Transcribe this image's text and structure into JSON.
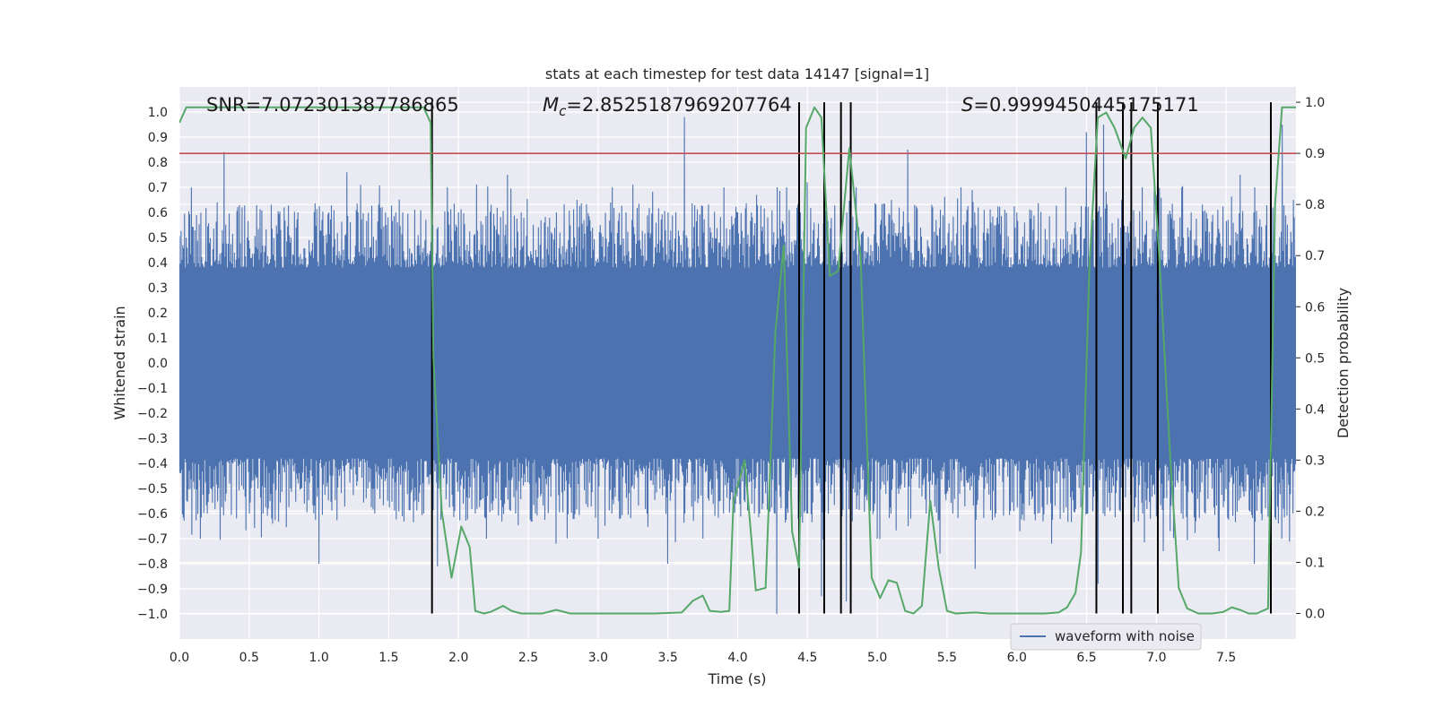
{
  "chart_data": {
    "type": "line",
    "title": "stats at each timestep for test data 14147 [signal=1]",
    "xlabel": "Time (s)",
    "ylabel": "Whitened strain",
    "y2label": "Detection probability",
    "xlim": [
      0,
      8.0
    ],
    "ylim": [
      -1.1,
      1.1
    ],
    "y2lim": [
      -0.05,
      1.03
    ],
    "xticks": [
      0.0,
      0.5,
      1.0,
      1.5,
      2.0,
      2.5,
      3.0,
      3.5,
      4.0,
      4.5,
      5.0,
      5.5,
      6.0,
      6.5,
      7.0,
      7.5
    ],
    "xtick_labels": [
      "0.0",
      "0.5",
      "1.0",
      "1.5",
      "2.0",
      "2.5",
      "3.0",
      "3.5",
      "4.0",
      "4.5",
      "5.0",
      "5.5",
      "6.0",
      "6.5",
      "7.0",
      "7.5"
    ],
    "yticks": [
      1.0,
      0.9,
      0.8,
      0.7,
      0.6,
      0.5,
      0.4,
      0.3,
      0.2,
      0.1,
      0.0,
      -0.1,
      -0.2,
      -0.3,
      -0.4,
      -0.5,
      -0.6,
      -0.7,
      -0.8,
      -0.9,
      -1.0
    ],
    "ytick_labels": [
      "1.0",
      "0.9",
      "0.8",
      "0.7",
      "0.6",
      "0.5",
      "0.4",
      "0.3",
      "0.2",
      "0.1",
      "0.0",
      "−0.1",
      "−0.2",
      "−0.3",
      "−0.4",
      "−0.5",
      "−0.6",
      "−0.7",
      "−0.8",
      "−0.9",
      "−1.0"
    ],
    "y2ticks": [
      1.0,
      0.9,
      0.8,
      0.7,
      0.6,
      0.5,
      0.4,
      0.3,
      0.2,
      0.1,
      0.0
    ],
    "y2tick_labels": [
      "1.0",
      "0.9",
      "0.8",
      "0.7",
      "0.6",
      "0.5",
      "0.4",
      "0.3",
      "0.2",
      "0.1",
      "0.0"
    ],
    "grid": true,
    "annotations": {
      "snr": "SNR=7.072301387786865",
      "mc_symbol": "M",
      "mc_sub": "c",
      "mc_value": "=2.8525187969207764",
      "s_symbol": "S",
      "s_value": "=0.9999450445175171"
    },
    "threshold_y2": 0.9,
    "waveform": {
      "name": "waveform with noise",
      "color": "#4c72b0",
      "envelope_peaks": [
        [
          0.05,
          0.5,
          -0.55
        ],
        [
          0.15,
          0.62,
          -0.7
        ],
        [
          0.27,
          0.64,
          -0.78
        ],
        [
          0.32,
          0.84,
          -0.6
        ],
        [
          0.45,
          0.62,
          -0.7
        ],
        [
          0.6,
          0.65,
          -0.6
        ],
        [
          0.75,
          0.62,
          -0.62
        ],
        [
          0.85,
          0.6,
          -0.67
        ],
        [
          1.0,
          0.65,
          -0.8
        ],
        [
          1.07,
          0.6,
          -0.95
        ],
        [
          1.2,
          0.76,
          -0.6
        ],
        [
          1.28,
          0.6,
          -0.78
        ],
        [
          1.4,
          0.91,
          -0.6
        ],
        [
          1.55,
          0.6,
          -0.68
        ],
        [
          1.6,
          0.6,
          -0.8
        ],
        [
          1.75,
          0.7,
          -0.6
        ],
        [
          1.85,
          0.6,
          -0.81
        ],
        [
          1.92,
          0.7,
          -0.6
        ],
        [
          2.0,
          0.6,
          -0.7
        ],
        [
          2.12,
          0.82,
          -0.6
        ],
        [
          2.2,
          0.6,
          -0.7
        ],
        [
          2.35,
          0.75,
          -0.6
        ],
        [
          2.45,
          0.6,
          -0.78
        ],
        [
          2.55,
          0.7,
          -0.6
        ],
        [
          2.7,
          0.6,
          -0.72
        ],
        [
          2.85,
          0.65,
          -0.6
        ],
        [
          3.0,
          0.6,
          -0.7
        ],
        [
          3.1,
          0.7,
          -0.6
        ],
        [
          3.2,
          0.6,
          -0.72
        ],
        [
          3.35,
          0.7,
          -0.6
        ],
        [
          3.5,
          0.6,
          -0.8
        ],
        [
          3.62,
          0.98,
          -0.6
        ],
        [
          3.75,
          0.65,
          -0.7
        ],
        [
          3.9,
          0.7,
          -0.6
        ],
        [
          4.0,
          0.6,
          -0.75
        ],
        [
          4.12,
          0.7,
          -0.6
        ],
        [
          4.28,
          0.6,
          -1.0
        ],
        [
          4.35,
          0.7,
          -0.6
        ],
        [
          4.45,
          0.6,
          -0.8
        ],
        [
          4.5,
          0.72,
          -0.6
        ],
        [
          4.6,
          0.6,
          -0.93
        ],
        [
          4.65,
          0.72,
          -0.6
        ],
        [
          4.78,
          0.6,
          -0.95
        ],
        [
          4.85,
          0.7,
          -0.6
        ],
        [
          5.0,
          0.6,
          -0.7
        ],
        [
          5.1,
          0.65,
          -0.6
        ],
        [
          5.22,
          0.85,
          -0.65
        ],
        [
          5.35,
          0.65,
          -0.6
        ],
        [
          5.45,
          0.6,
          -0.76
        ],
        [
          5.6,
          0.7,
          -0.6
        ],
        [
          5.7,
          0.6,
          -0.82
        ],
        [
          5.85,
          0.7,
          -0.6
        ],
        [
          6.0,
          0.6,
          -0.76
        ],
        [
          6.15,
          0.7,
          -0.6
        ],
        [
          6.25,
          0.6,
          -0.72
        ],
        [
          6.35,
          0.7,
          -0.6
        ],
        [
          6.5,
          0.92,
          -0.6
        ],
        [
          6.58,
          0.6,
          -0.88
        ],
        [
          6.62,
          0.95,
          -0.6
        ],
        [
          6.75,
          0.65,
          -0.8
        ],
        [
          6.9,
          0.7,
          -0.6
        ],
        [
          7.05,
          0.6,
          -0.75
        ],
        [
          7.18,
          0.7,
          -0.6
        ],
        [
          7.25,
          0.6,
          -0.82
        ],
        [
          7.35,
          0.7,
          -0.6
        ],
        [
          7.45,
          0.6,
          -0.75
        ],
        [
          7.6,
          0.75,
          -0.6
        ],
        [
          7.7,
          0.6,
          -0.8
        ],
        [
          7.75,
          0.72,
          -0.6
        ],
        [
          7.9,
          0.95,
          -0.7
        ],
        [
          7.98,
          0.65,
          -0.6
        ]
      ]
    },
    "detection_probability": {
      "color": "#55a868",
      "points": [
        [
          0.0,
          0.96
        ],
        [
          0.05,
          0.99
        ],
        [
          0.2,
          0.99
        ],
        [
          0.5,
          0.99
        ],
        [
          1.0,
          0.99
        ],
        [
          1.5,
          0.99
        ],
        [
          1.75,
          0.99
        ],
        [
          1.8,
          0.96
        ],
        [
          1.82,
          0.5
        ],
        [
          1.88,
          0.2
        ],
        [
          1.95,
          0.07
        ],
        [
          2.02,
          0.17
        ],
        [
          2.08,
          0.13
        ],
        [
          2.12,
          0.005
        ],
        [
          2.18,
          0.0
        ],
        [
          2.23,
          0.003
        ],
        [
          2.32,
          0.015
        ],
        [
          2.38,
          0.005
        ],
        [
          2.45,
          0.0
        ],
        [
          2.6,
          0.0
        ],
        [
          2.7,
          0.007
        ],
        [
          2.8,
          0.0
        ],
        [
          3.0,
          0.0
        ],
        [
          3.2,
          0.0
        ],
        [
          3.4,
          0.0
        ],
        [
          3.6,
          0.002
        ],
        [
          3.68,
          0.025
        ],
        [
          3.75,
          0.035
        ],
        [
          3.8,
          0.005
        ],
        [
          3.88,
          0.003
        ],
        [
          3.94,
          0.005
        ],
        [
          3.97,
          0.22
        ],
        [
          4.05,
          0.3
        ],
        [
          4.13,
          0.045
        ],
        [
          4.2,
          0.05
        ],
        [
          4.27,
          0.55
        ],
        [
          4.33,
          0.72
        ],
        [
          4.39,
          0.16
        ],
        [
          4.44,
          0.09
        ],
        [
          4.49,
          0.95
        ],
        [
          4.55,
          0.99
        ],
        [
          4.6,
          0.97
        ],
        [
          4.66,
          0.66
        ],
        [
          4.72,
          0.67
        ],
        [
          4.8,
          0.91
        ],
        [
          4.88,
          0.7
        ],
        [
          4.96,
          0.07
        ],
        [
          5.02,
          0.03
        ],
        [
          5.08,
          0.065
        ],
        [
          5.14,
          0.06
        ],
        [
          5.2,
          0.005
        ],
        [
          5.26,
          0.0
        ],
        [
          5.32,
          0.015
        ],
        [
          5.38,
          0.22
        ],
        [
          5.44,
          0.09
        ],
        [
          5.5,
          0.005
        ],
        [
          5.56,
          0.0
        ],
        [
          5.7,
          0.002
        ],
        [
          5.8,
          0.0
        ],
        [
          6.0,
          0.0
        ],
        [
          6.2,
          0.0
        ],
        [
          6.3,
          0.002
        ],
        [
          6.36,
          0.012
        ],
        [
          6.42,
          0.04
        ],
        [
          6.46,
          0.12
        ],
        [
          6.52,
          0.68
        ],
        [
          6.58,
          0.97
        ],
        [
          6.64,
          0.98
        ],
        [
          6.7,
          0.95
        ],
        [
          6.78,
          0.89
        ],
        [
          6.84,
          0.95
        ],
        [
          6.9,
          0.97
        ],
        [
          6.96,
          0.95
        ],
        [
          7.02,
          0.7
        ],
        [
          7.1,
          0.3
        ],
        [
          7.16,
          0.05
        ],
        [
          7.22,
          0.01
        ],
        [
          7.3,
          0.0
        ],
        [
          7.4,
          0.0
        ],
        [
          7.48,
          0.003
        ],
        [
          7.54,
          0.012
        ],
        [
          7.6,
          0.007
        ],
        [
          7.66,
          0.0
        ],
        [
          7.72,
          0.0
        ],
        [
          7.8,
          0.01
        ],
        [
          7.85,
          0.8
        ],
        [
          7.9,
          0.99
        ],
        [
          8.0,
          0.99
        ]
      ]
    },
    "event_lines_x": [
      1.81,
      4.44,
      4.62,
      4.74,
      4.81,
      6.57,
      6.76,
      6.82,
      7.01,
      7.82
    ],
    "legend": {
      "label": "waveform with noise",
      "placement": "lower-right"
    },
    "colors": {
      "background": "#eaeaf2",
      "grid": "#ffffff",
      "threshold": "#c44e52",
      "event_line": "#000000"
    }
  }
}
